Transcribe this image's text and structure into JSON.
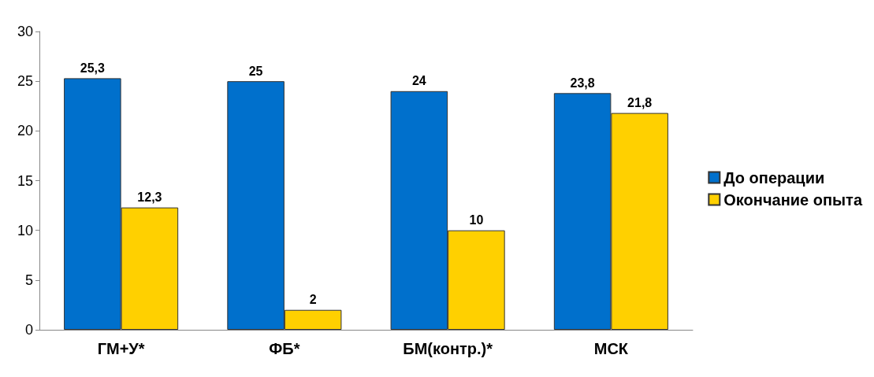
{
  "chart_data": {
    "type": "bar",
    "categories": [
      "ГМ+У*",
      "ФБ*",
      "БМ(контр.)*",
      "МСК"
    ],
    "series": [
      {
        "name": "До операции",
        "color": "#0070cc",
        "values": [
          25.3,
          25,
          24,
          23.8
        ],
        "value_labels": [
          "25,3",
          "25",
          "24",
          "23,8"
        ]
      },
      {
        "name": "Окончание опыта",
        "color": "#ffd000",
        "values": [
          12.3,
          2,
          10,
          21.8
        ],
        "value_labels": [
          "12,3",
          "2",
          "10",
          "21,8"
        ]
      }
    ],
    "ylim": [
      0,
      30
    ],
    "yticks": [
      0,
      5,
      10,
      15,
      20,
      25,
      30
    ],
    "grid": false,
    "legend": "right"
  }
}
